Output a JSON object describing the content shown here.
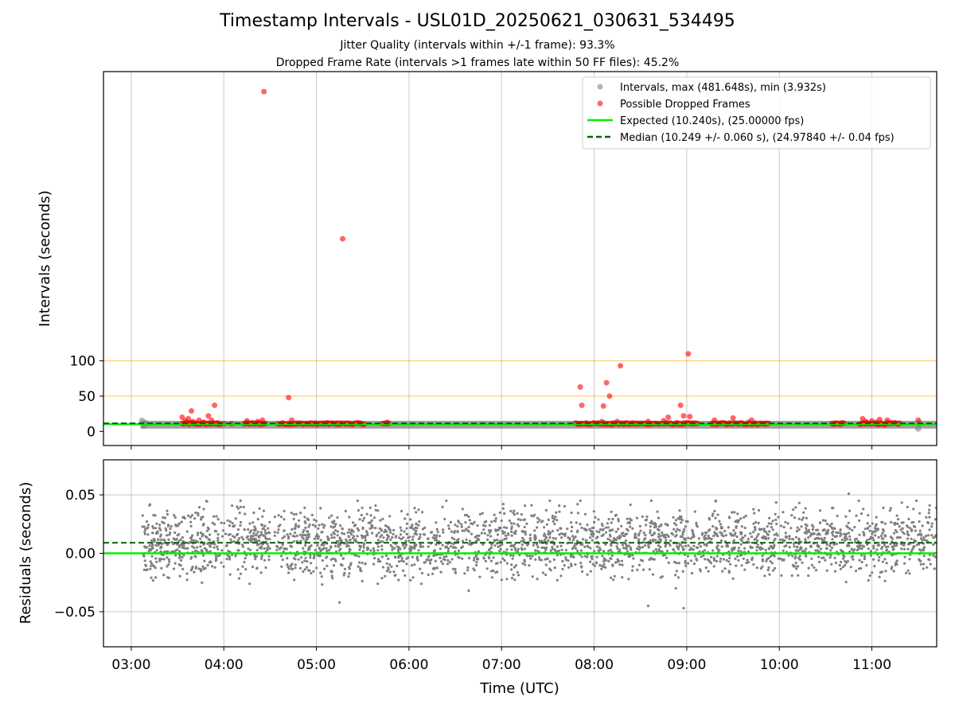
{
  "title": "Timestamp Intervals - USL01D_20250621_030631_534495",
  "subtitle_1": "Jitter Quality (intervals within +/-1 frame): 93.3%",
  "subtitle_2": "Dropped Frame Rate (intervals >1 frames late within 50 FF files): 45.2%",
  "colors": {
    "intervals": "#808080",
    "dropped": "#ff0000",
    "expected": "#00ee00",
    "median": "#006400",
    "threshold": "#ffa500",
    "grid": "#b0b0b0"
  },
  "chart_data": [
    {
      "type": "scatter",
      "name": "intervals",
      "xlabel": "",
      "ylabel": "Intervals (seconds)",
      "xlim": [
        "02:42",
        "11:42"
      ],
      "ylim": [
        -20,
        510
      ],
      "x_ticks": [
        "03:00",
        "04:00",
        "05:00",
        "06:00",
        "07:00",
        "08:00",
        "09:00",
        "10:00",
        "11:00"
      ],
      "y_ticks": [
        0,
        50,
        100
      ],
      "threshold_lines": [
        50,
        100
      ],
      "grid": "vertical and threshold lines",
      "legend_position": "upper right",
      "legend": [
        "Intervals, max (481.648s), min (3.932s)",
        "Possible Dropped Frames",
        "Expected (10.240s), (25.00000 fps)",
        "Median (10.249 +/- 0.060 s), (24.97840 +/- 0.04 fps)"
      ],
      "series": [
        {
          "name": "Intervals, max (481.648s), min (3.932s)",
          "description_band": {
            "x_start": "03:06",
            "x_end": "11:42",
            "y_min": 3.932,
            "y_max": 15,
            "typical": 10.24
          },
          "points": [
            {
              "x": "03:07",
              "y": 15
            },
            {
              "x": "03:08",
              "y": 8
            },
            {
              "x": "03:09",
              "y": 12
            },
            {
              "x": "11:30",
              "y": 4
            },
            {
              "x": "11:31",
              "y": 12
            }
          ]
        },
        {
          "name": "Possible Dropped Frames",
          "points": [
            {
              "x": "03:33",
              "y": 20
            },
            {
              "x": "03:35",
              "y": 15
            },
            {
              "x": "03:37",
              "y": 18
            },
            {
              "x": "03:38",
              "y": 12
            },
            {
              "x": "03:39",
              "y": 29
            },
            {
              "x": "03:40",
              "y": 14
            },
            {
              "x": "03:42",
              "y": 11
            },
            {
              "x": "03:44",
              "y": 16
            },
            {
              "x": "03:47",
              "y": 13
            },
            {
              "x": "03:50",
              "y": 22
            },
            {
              "x": "03:52",
              "y": 16
            },
            {
              "x": "03:54",
              "y": 37
            },
            {
              "x": "03:56",
              "y": 12
            },
            {
              "x": "04:00",
              "y": 11
            },
            {
              "x": "04:05",
              "y": 11
            },
            {
              "x": "04:15",
              "y": 15
            },
            {
              "x": "04:18",
              "y": 12
            },
            {
              "x": "04:22",
              "y": 14
            },
            {
              "x": "04:25",
              "y": 16
            },
            {
              "x": "04:26",
              "y": 481.648
            },
            {
              "x": "04:42",
              "y": 48
            },
            {
              "x": "04:44",
              "y": 16
            },
            {
              "x": "04:48",
              "y": 11
            },
            {
              "x": "05:08",
              "y": 12
            },
            {
              "x": "05:16",
              "y": 12
            },
            {
              "x": "05:17",
              "y": 273
            },
            {
              "x": "05:46",
              "y": 13
            },
            {
              "x": "07:51",
              "y": 63
            },
            {
              "x": "07:52",
              "y": 37
            },
            {
              "x": "07:55",
              "y": 12
            },
            {
              "x": "08:05",
              "y": 14
            },
            {
              "x": "08:06",
              "y": 36
            },
            {
              "x": "08:08",
              "y": 69
            },
            {
              "x": "08:10",
              "y": 50
            },
            {
              "x": "08:12",
              "y": 12
            },
            {
              "x": "08:15",
              "y": 14
            },
            {
              "x": "08:17",
              "y": 93
            },
            {
              "x": "08:20",
              "y": 11
            },
            {
              "x": "08:35",
              "y": 14
            },
            {
              "x": "08:45",
              "y": 15
            },
            {
              "x": "08:48",
              "y": 20
            },
            {
              "x": "08:56",
              "y": 37
            },
            {
              "x": "08:58",
              "y": 22
            },
            {
              "x": "09:01",
              "y": 110
            },
            {
              "x": "09:02",
              "y": 21
            },
            {
              "x": "09:18",
              "y": 16
            },
            {
              "x": "09:24",
              "y": 12
            },
            {
              "x": "09:30",
              "y": 19
            },
            {
              "x": "09:40",
              "y": 13
            },
            {
              "x": "09:42",
              "y": 16
            },
            {
              "x": "10:36",
              "y": 12
            },
            {
              "x": "10:54",
              "y": 18
            },
            {
              "x": "10:56",
              "y": 14
            },
            {
              "x": "11:00",
              "y": 15
            },
            {
              "x": "11:03",
              "y": 13
            },
            {
              "x": "11:05",
              "y": 17
            },
            {
              "x": "11:10",
              "y": 16
            },
            {
              "x": "11:30",
              "y": 16
            }
          ],
          "dense_segments": [
            [
              "03:33",
              "03:58"
            ],
            [
              "04:13",
              "04:27"
            ],
            [
              "04:35",
              "05:16"
            ],
            [
              "05:18",
              "05:31"
            ],
            [
              "05:43",
              "05:47"
            ],
            [
              "07:48",
              "08:43"
            ],
            [
              "08:45",
              "09:07"
            ],
            [
              "09:16",
              "09:53"
            ],
            [
              "10:34",
              "10:42"
            ],
            [
              "10:52",
              "11:18"
            ]
          ],
          "dense_y": 10.24
        },
        {
          "name": "Expected (10.240s), (25.00000 fps)",
          "y": 10.24
        },
        {
          "name": "Median (10.249 +/- 0.060 s), (24.97840 +/- 0.04 fps)",
          "y": 10.249
        }
      ]
    },
    {
      "type": "scatter",
      "name": "residuals",
      "xlabel": "Time (UTC)",
      "ylabel": "Residuals (seconds)",
      "xlim": [
        "02:42",
        "11:42"
      ],
      "ylim": [
        -0.08,
        0.08
      ],
      "x_ticks": [
        "03:00",
        "04:00",
        "05:00",
        "06:00",
        "07:00",
        "08:00",
        "09:00",
        "10:00",
        "11:00"
      ],
      "y_ticks": [
        0.05,
        0.0,
        -0.05
      ],
      "y_tick_labels": [
        "0.05",
        "0.00",
        "−0.05"
      ],
      "grid": "on",
      "series": [
        {
          "name": "residuals",
          "x_range": [
            "03:07",
            "11:42"
          ],
          "gap": [
            "04:30",
            "04:33"
          ],
          "center": 0.009,
          "spread_min": -0.032,
          "spread_max": 0.045,
          "outliers": [
            {
              "x": "05:15",
              "y": -0.042
            },
            {
              "x": "08:35",
              "y": -0.045
            },
            {
              "x": "08:58",
              "y": -0.047
            },
            {
              "x": "10:45",
              "y": 0.051
            }
          ]
        },
        {
          "name": "expected",
          "y": 0.0
        },
        {
          "name": "median",
          "y": 0.009
        }
      ]
    }
  ]
}
